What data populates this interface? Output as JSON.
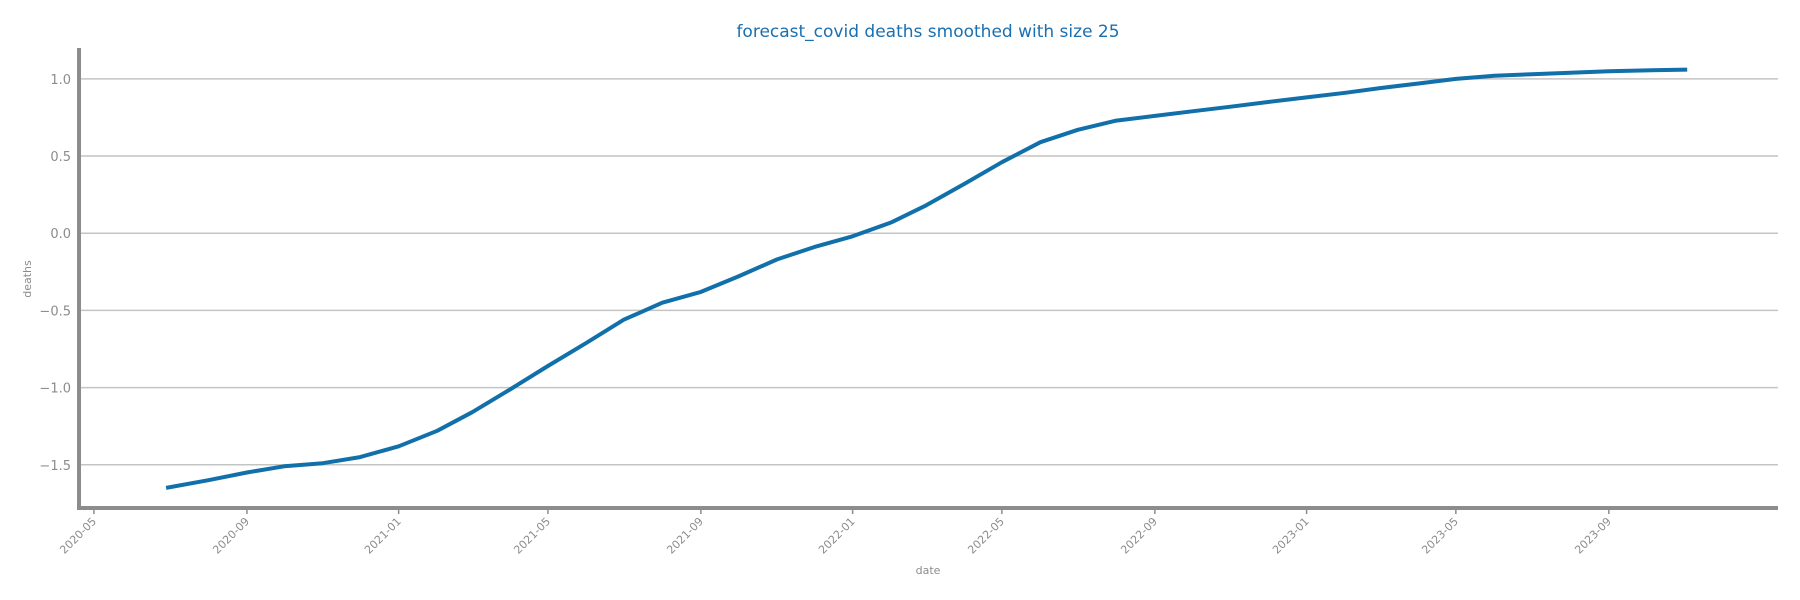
{
  "chart_data": {
    "type": "line",
    "title": "forecast_covid deaths smoothed with size 25",
    "xlabel": "date",
    "ylabel": "deaths",
    "x_range": [
      "2020-04-19",
      "2024-01-15"
    ],
    "ylim": [
      -1.78,
      1.2
    ],
    "grid": "horizontal",
    "color": "#1170aa",
    "x_ticks": [
      "2020-05",
      "2020-09",
      "2021-01",
      "2021-05",
      "2021-09",
      "2022-01",
      "2022-05",
      "2022-09",
      "2023-01",
      "2023-05",
      "2023-09"
    ],
    "y_ticks": [
      1.0,
      0.5,
      0.0,
      -0.5,
      -1.0,
      -1.5
    ],
    "y_tick_labels": [
      "1.0",
      "0.5",
      "0.0",
      "−0.5",
      "−1.0",
      "−1.5"
    ],
    "series": [
      {
        "x": [
          "2020-06-28",
          "2020-08-01",
          "2020-09-01",
          "2020-10-01",
          "2020-11-01",
          "2020-12-01",
          "2021-01-01",
          "2021-02-01",
          "2021-03-01",
          "2021-04-01",
          "2021-05-01",
          "2021-06-01",
          "2021-07-01",
          "2021-08-01",
          "2021-09-01",
          "2021-10-01",
          "2021-11-01",
          "2021-12-01",
          "2022-01-01",
          "2022-02-01",
          "2022-03-01",
          "2022-04-01",
          "2022-05-01",
          "2022-06-01",
          "2022-07-01",
          "2022-08-01",
          "2022-09-01",
          "2022-10-01",
          "2022-11-01",
          "2022-12-01",
          "2023-01-01",
          "2023-02-01",
          "2023-03-01",
          "2023-04-01",
          "2023-05-01",
          "2023-06-01",
          "2023-07-01",
          "2023-08-01",
          "2023-09-01",
          "2023-10-01",
          "2023-11-03"
        ],
        "y": [
          -1.65,
          -1.6,
          -1.55,
          -1.51,
          -1.49,
          -1.45,
          -1.38,
          -1.28,
          -1.16,
          -1.01,
          -0.86,
          -0.71,
          -0.56,
          -0.45,
          -0.38,
          -0.28,
          -0.17,
          -0.09,
          -0.02,
          0.07,
          0.18,
          0.32,
          0.46,
          0.59,
          0.67,
          0.73,
          0.76,
          0.79,
          0.82,
          0.85,
          0.88,
          0.91,
          0.94,
          0.97,
          1.0,
          1.02,
          1.03,
          1.04,
          1.05,
          1.055,
          1.06
        ]
      }
    ]
  }
}
